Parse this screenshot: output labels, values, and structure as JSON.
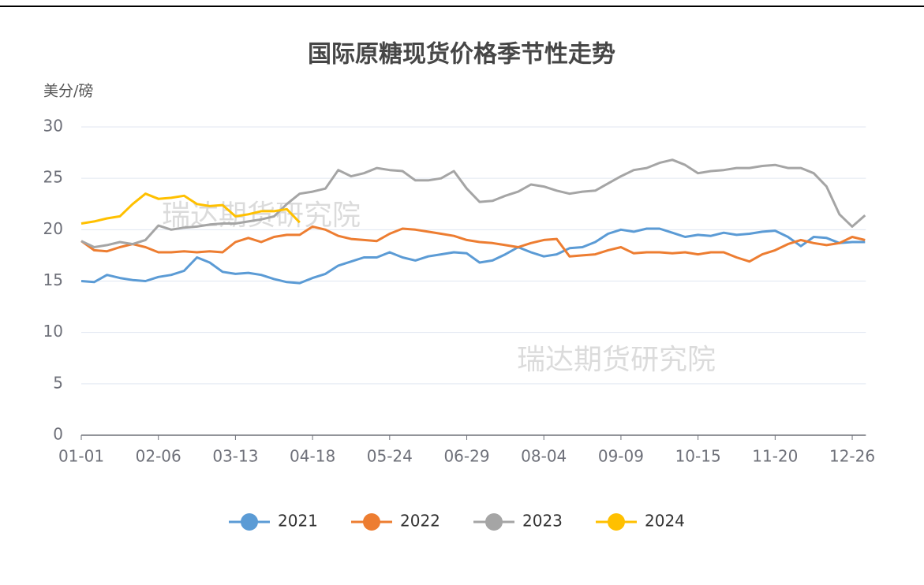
{
  "chart_data": {
    "type": "line",
    "title": "国际原糖现货价格季节性走势",
    "y_label": "美分/磅",
    "watermarks": [
      "瑞达期货研究院",
      "瑞达期货研究院"
    ],
    "categories": [
      "01-01",
      null,
      null,
      null,
      null,
      null,
      "02-06",
      null,
      null,
      null,
      null,
      null,
      "03-13",
      null,
      null,
      null,
      null,
      null,
      "04-18",
      null,
      null,
      null,
      null,
      null,
      "05-24",
      null,
      null,
      null,
      null,
      null,
      "06-29",
      null,
      null,
      null,
      null,
      null,
      "08-04",
      null,
      null,
      null,
      null,
      null,
      "09-09",
      null,
      null,
      null,
      null,
      null,
      "10-15",
      null,
      null,
      null,
      null,
      null,
      "11-20",
      null,
      null,
      null,
      null,
      null,
      "12-26",
      null
    ],
    "ylim": [
      0,
      30
    ],
    "yticks": [
      0,
      5,
      10,
      15,
      20,
      25,
      30
    ],
    "grid": true,
    "series": [
      {
        "name": "2021",
        "color": "#5b9bd5",
        "values": [
          15.0,
          14.9,
          15.6,
          15.3,
          15.1,
          15.0,
          15.4,
          15.6,
          16.0,
          17.3,
          16.8,
          15.9,
          15.7,
          15.8,
          15.6,
          15.2,
          14.9,
          14.8,
          15.3,
          15.7,
          16.5,
          16.9,
          17.3,
          17.3,
          17.8,
          17.3,
          17.0,
          17.4,
          17.6,
          17.8,
          17.7,
          16.8,
          17.0,
          17.6,
          18.3,
          17.8,
          17.4,
          17.6,
          18.2,
          18.3,
          18.8,
          19.6,
          20.0,
          19.8,
          20.1,
          20.1,
          19.7,
          19.3,
          19.5,
          19.4,
          19.7,
          19.5,
          19.6,
          19.8,
          19.9,
          19.3,
          18.4,
          19.3,
          19.2,
          18.7,
          18.8,
          18.8
        ]
      },
      {
        "name": "2022",
        "color": "#ed7d31",
        "values": [
          18.9,
          18.0,
          17.9,
          18.3,
          18.6,
          18.3,
          17.8,
          17.8,
          17.9,
          17.8,
          17.9,
          17.8,
          18.8,
          19.2,
          18.8,
          19.3,
          19.5,
          19.5,
          20.3,
          20.0,
          19.4,
          19.1,
          19.0,
          18.9,
          19.6,
          20.1,
          20.0,
          19.8,
          19.6,
          19.4,
          19.0,
          18.8,
          18.7,
          18.5,
          18.3,
          18.7,
          19.0,
          19.1,
          17.4,
          17.5,
          17.6,
          18.0,
          18.3,
          17.7,
          17.8,
          17.8,
          17.7,
          17.8,
          17.6,
          17.8,
          17.8,
          17.3,
          16.9,
          17.6,
          18.0,
          18.6,
          19.0,
          18.7,
          18.5,
          18.7,
          19.3,
          19.0
        ]
      },
      {
        "name": "2023",
        "color": "#a5a5a5",
        "values": [
          18.9,
          18.3,
          18.5,
          18.8,
          18.6,
          19.0,
          20.4,
          20.0,
          20.2,
          20.3,
          20.5,
          20.6,
          20.6,
          20.8,
          21.0,
          21.3,
          22.5,
          23.5,
          23.7,
          24.0,
          25.8,
          25.2,
          25.5,
          26.0,
          25.8,
          25.7,
          24.8,
          24.8,
          25.0,
          25.7,
          24.0,
          22.7,
          22.8,
          23.3,
          23.7,
          24.4,
          24.2,
          23.8,
          23.5,
          23.7,
          23.8,
          24.5,
          25.2,
          25.8,
          26.0,
          26.5,
          26.8,
          26.3,
          25.5,
          25.7,
          25.8,
          26.0,
          26.0,
          26.2,
          26.3,
          26.0,
          26.0,
          25.5,
          24.2,
          21.5,
          20.3,
          21.4
        ]
      },
      {
        "name": "2024",
        "color": "#ffc000",
        "values": [
          20.6,
          20.8,
          21.1,
          21.3,
          22.5,
          23.5,
          23.0,
          23.1,
          23.3,
          22.5,
          22.3,
          22.4,
          21.3,
          21.5,
          21.8,
          21.8,
          22.0,
          20.7,
          null,
          null,
          null,
          null,
          null,
          null,
          null,
          null,
          null,
          null,
          null,
          null,
          null,
          null,
          null,
          null,
          null,
          null,
          null,
          null,
          null,
          null,
          null,
          null,
          null,
          null,
          null,
          null,
          null,
          null,
          null,
          null,
          null,
          null,
          null,
          null,
          null,
          null,
          null,
          null,
          null,
          null,
          null,
          null
        ]
      }
    ]
  }
}
